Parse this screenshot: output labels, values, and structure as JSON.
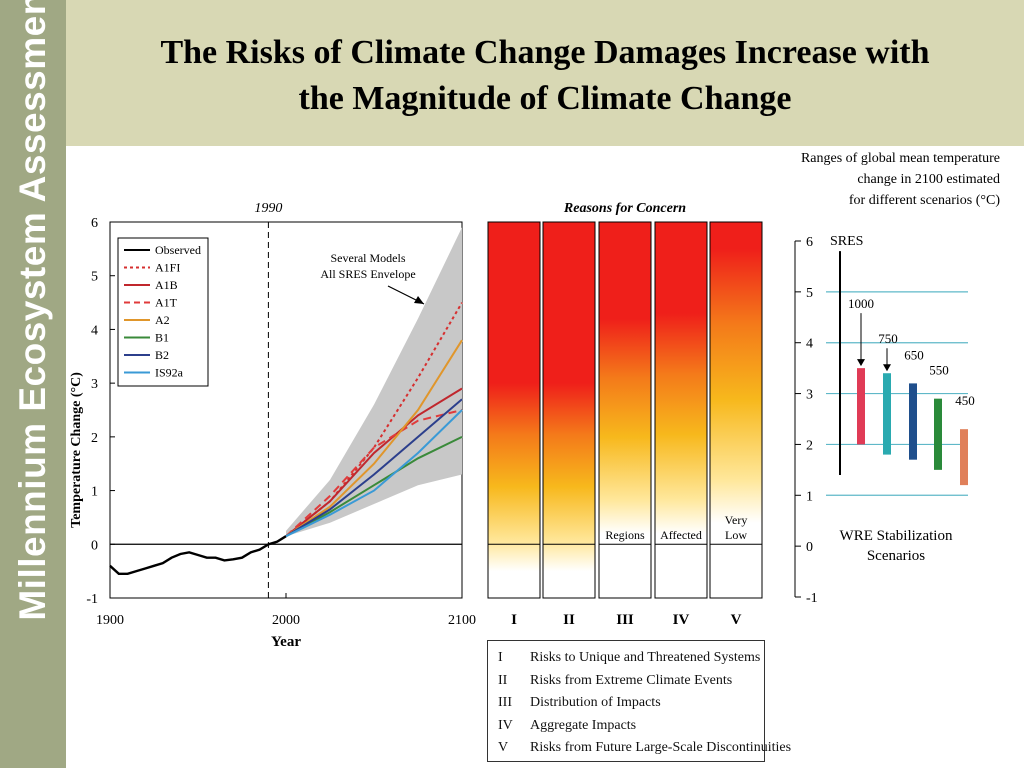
{
  "slide": {
    "sidebar_label": "Millennium Ecosystem Assessment",
    "title_line1": "The Risks of Climate Change Damages Increase with",
    "title_line2": "the Magnitude of Climate Change"
  },
  "colors": {
    "sidebar": "#a0a884",
    "header": "#d8d8b4",
    "envelope": "#c8c8c8",
    "observed": "#000000",
    "A1FI": "#d62f2f",
    "A1B": "#c0272d",
    "A1T": "#e03b3b",
    "A2": "#e0962b",
    "B1": "#3a8a3a",
    "B2": "#2c3f8c",
    "IS92a": "#3a9ad6",
    "wre1000": "#e03b56",
    "wre750": "#2aaab0",
    "wre650": "#1f4f8c",
    "wre550": "#2a8a3a",
    "wre450": "#e0805a"
  },
  "chart_data": [
    {
      "type": "line",
      "xlabel": "Year",
      "ylabel": "Temperature Change (°C)",
      "xlim": [
        1900,
        2100
      ],
      "ylim": [
        -1,
        6
      ],
      "x_ticks": [
        "1900",
        "2000",
        "2100"
      ],
      "y_ticks": [
        "6",
        "5",
        "4",
        "3",
        "2",
        "1",
        "0",
        "-1"
      ],
      "marker_label": "1990",
      "marker_x": 1990,
      "annotation": "Several Models All SRES Envelope",
      "annotation_lines": [
        "Several Models",
        "All SRES Envelope"
      ],
      "envelope": {
        "x": [
          2000,
          2025,
          2050,
          2075,
          2100
        ],
        "lower": [
          0.15,
          0.4,
          0.75,
          1.1,
          1.3
        ],
        "upper": [
          0.25,
          1.2,
          2.6,
          4.2,
          5.9
        ]
      },
      "series": [
        {
          "name": "Observed",
          "style": "solid",
          "color_key": "observed",
          "x": [
            1900,
            1905,
            1910,
            1915,
            1920,
            1925,
            1930,
            1935,
            1940,
            1945,
            1950,
            1955,
            1960,
            1965,
            1970,
            1975,
            1980,
            1985,
            1990,
            1995,
            2000
          ],
          "y": [
            -0.4,
            -0.55,
            -0.55,
            -0.5,
            -0.45,
            -0.4,
            -0.35,
            -0.25,
            -0.18,
            -0.15,
            -0.2,
            -0.25,
            -0.25,
            -0.3,
            -0.28,
            -0.25,
            -0.15,
            -0.1,
            0.0,
            0.05,
            0.15
          ]
        },
        {
          "name": "A1FI",
          "style": "dotted",
          "color_key": "A1FI",
          "x": [
            2000,
            2025,
            2050,
            2075,
            2100
          ],
          "y": [
            0.15,
            0.8,
            1.8,
            3.1,
            4.5
          ]
        },
        {
          "name": "A1B",
          "style": "solid",
          "color_key": "A1B",
          "x": [
            2000,
            2025,
            2050,
            2075,
            2100
          ],
          "y": [
            0.15,
            0.8,
            1.7,
            2.4,
            2.9
          ]
        },
        {
          "name": "A1T",
          "style": "dashed",
          "color_key": "A1T",
          "x": [
            2000,
            2025,
            2050,
            2075,
            2100
          ],
          "y": [
            0.15,
            0.9,
            1.8,
            2.3,
            2.5
          ]
        },
        {
          "name": "A2",
          "style": "solid",
          "color_key": "A2",
          "x": [
            2000,
            2025,
            2050,
            2075,
            2100
          ],
          "y": [
            0.15,
            0.7,
            1.5,
            2.5,
            3.8
          ]
        },
        {
          "name": "B1",
          "style": "solid",
          "color_key": "B1",
          "x": [
            2000,
            2025,
            2050,
            2075,
            2100
          ],
          "y": [
            0.15,
            0.6,
            1.1,
            1.6,
            2.0
          ]
        },
        {
          "name": "B2",
          "style": "solid",
          "color_key": "B2",
          "x": [
            2000,
            2025,
            2050,
            2075,
            2100
          ],
          "y": [
            0.15,
            0.65,
            1.3,
            2.0,
            2.7
          ]
        },
        {
          "name": "IS92a",
          "style": "solid",
          "color_key": "IS92a",
          "x": [
            2000,
            2025,
            2050,
            2075,
            2100
          ],
          "y": [
            0.15,
            0.55,
            1.0,
            1.7,
            2.5
          ]
        }
      ]
    },
    {
      "type": "heatmap",
      "title": "Reasons for Concern",
      "ylim": [
        -1,
        6
      ],
      "categories": [
        "I",
        "II",
        "III",
        "IV",
        "V"
      ],
      "column_labels": [
        "",
        "",
        "Regions",
        "Affected",
        "Very Low"
      ],
      "risk_start": [
        -0.5,
        -0.5,
        0.2,
        0.2,
        0.4
      ],
      "risk_red": [
        3.0,
        3.0,
        4.2,
        4.3,
        5.5
      ],
      "baseline": 0,
      "legend": [
        {
          "num": "I",
          "text": "Risks to Unique and Threatened Systems"
        },
        {
          "num": "II",
          "text": "Risks from Extreme Climate Events"
        },
        {
          "num": "III",
          "text": "Distribution of Impacts"
        },
        {
          "num": "IV",
          "text": "Aggregate Impacts"
        },
        {
          "num": "V",
          "text": "Risks from Future Large-Scale Discontinuities"
        }
      ]
    },
    {
      "type": "bar",
      "caption": [
        "Ranges of global mean temperature",
        "change in 2100 estimated",
        "for different scenarios (°C)"
      ],
      "ylim": [
        -1,
        6
      ],
      "y_ticks": [
        "6",
        "5",
        "4",
        "3",
        "2",
        "1",
        "0",
        "-1"
      ],
      "sres_label": "SRES",
      "sres_range": [
        1.4,
        5.8
      ],
      "footer": [
        "WRE Stabilization",
        "Scenarios"
      ],
      "categories": [
        "1000",
        "750",
        "650",
        "550",
        "450"
      ],
      "ranges": [
        [
          2.0,
          3.5
        ],
        [
          1.8,
          3.4
        ],
        [
          1.7,
          3.2
        ],
        [
          1.5,
          2.9
        ],
        [
          1.2,
          2.3
        ]
      ],
      "color_keys": [
        "wre1000",
        "wre750",
        "wre650",
        "wre550",
        "wre450"
      ]
    }
  ]
}
